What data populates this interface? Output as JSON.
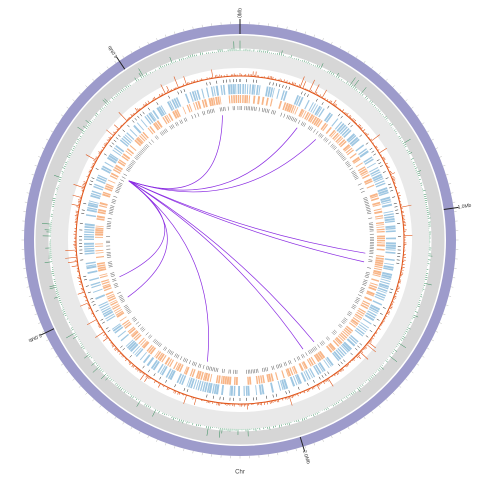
{
  "chart_data": {
    "type": "circos",
    "ticks": [
      {
        "value": 0,
        "label": "0Mb"
      },
      {
        "value": 1,
        "label": "1.0Mb"
      },
      {
        "value": 2,
        "label": "2.0Mb"
      },
      {
        "value": 3,
        "label": "3.0Mb"
      },
      {
        "value": 4,
        "label": "4.0Mb"
      }
    ],
    "xlabel": "Chr"
  }
}
